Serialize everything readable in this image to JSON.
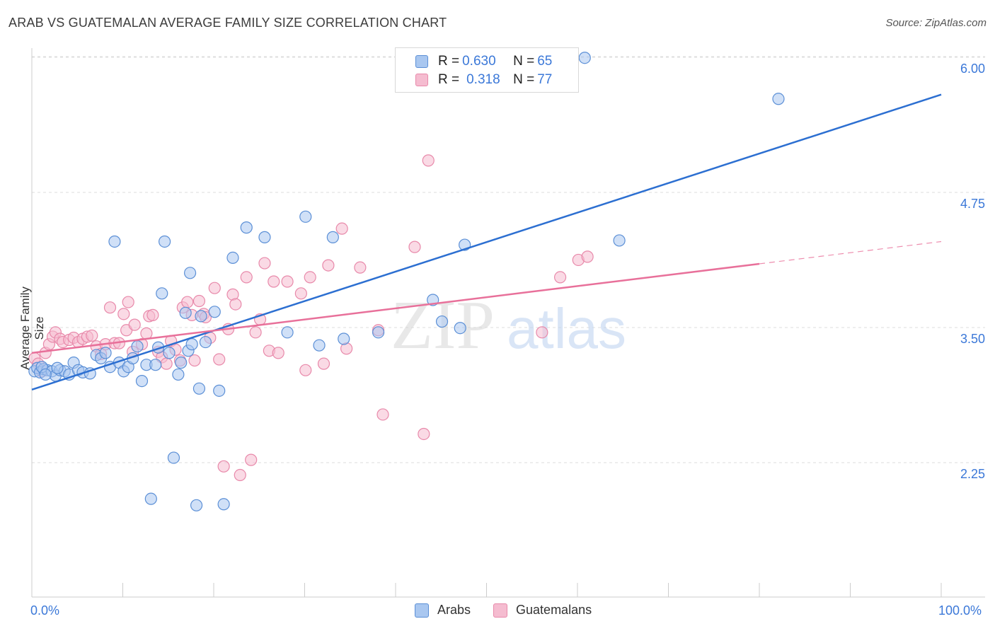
{
  "title": "ARAB VS GUATEMALAN AVERAGE FAMILY SIZE CORRELATION CHART",
  "source": "Source: ZipAtlas.com",
  "watermark": {
    "zip": "ZIP",
    "atlas": "atlas"
  },
  "legend_top": {
    "rows": [
      {
        "r_label": "R = ",
        "r_value": "0.630",
        "n_label": "N = ",
        "n_value": "65"
      },
      {
        "r_label": "R = ",
        "r_value": "0.318",
        "n_label": "N = ",
        "n_value": "77"
      }
    ]
  },
  "legend_bottom": {
    "arabs": "Arabs",
    "guatemalans": "Guatemalans"
  },
  "colors": {
    "arabs_fill": "#a9c7f0",
    "arabs_stroke": "#5b8fd6",
    "arabs_line": "#2c6fd1",
    "guat_fill": "#f5bcd0",
    "guat_stroke": "#e889aa",
    "guat_line": "#e8709a",
    "axis_label": "#3b78d8",
    "grid": "#dddddd"
  },
  "chart_data": {
    "type": "scatter",
    "title": "ARAB VS GUATEMALAN AVERAGE FAMILY SIZE CORRELATION CHART",
    "xlabel": "",
    "ylabel": "Average Family Size",
    "xlim": [
      0,
      100
    ],
    "ylim": [
      1.2,
      6.2
    ],
    "x_tick_labels": [
      "0.0%",
      "100.0%"
    ],
    "y_ticks": [
      2.25,
      3.5,
      4.75,
      6.0
    ],
    "y_tick_labels": [
      "2.25",
      "3.50",
      "4.75",
      "6.00"
    ],
    "grid": true,
    "series": [
      {
        "name": "Arabs",
        "r": 0.63,
        "n": 65,
        "trend": {
          "x": [
            0,
            100
          ],
          "y": [
            3.03,
            5.76
          ],
          "dashed_from": null
        },
        "points": [
          [
            0.3,
            3.2
          ],
          [
            0.6,
            3.23
          ],
          [
            0.9,
            3.19
          ],
          [
            1.3,
            3.22
          ],
          [
            1.7,
            3.21
          ],
          [
            2.2,
            3.2
          ],
          [
            2.6,
            3.16
          ],
          [
            3.1,
            3.21
          ],
          [
            3.6,
            3.2
          ],
          [
            4.1,
            3.17
          ],
          [
            4.6,
            3.28
          ],
          [
            5.1,
            3.21
          ],
          [
            5.6,
            3.19
          ],
          [
            6.4,
            3.18
          ],
          [
            7.1,
            3.35
          ],
          [
            7.6,
            3.32
          ],
          [
            8.1,
            3.37
          ],
          [
            8.6,
            3.24
          ],
          [
            9.1,
            4.4
          ],
          [
            9.6,
            3.28
          ],
          [
            10.1,
            3.2
          ],
          [
            10.6,
            3.24
          ],
          [
            11.1,
            3.32
          ],
          [
            11.6,
            3.43
          ],
          [
            12.1,
            3.11
          ],
          [
            12.6,
            3.26
          ],
          [
            13.1,
            2.02
          ],
          [
            13.6,
            3.26
          ],
          [
            13.9,
            3.42
          ],
          [
            14.3,
            3.92
          ],
          [
            14.6,
            4.4
          ],
          [
            15.1,
            3.37
          ],
          [
            15.6,
            2.4
          ],
          [
            16.1,
            3.17
          ],
          [
            16.4,
            3.28
          ],
          [
            16.9,
            3.74
          ],
          [
            17.2,
            3.39
          ],
          [
            17.4,
            4.11
          ],
          [
            17.6,
            3.45
          ],
          [
            18.1,
            1.96
          ],
          [
            18.6,
            3.71
          ],
          [
            19.1,
            3.47
          ],
          [
            18.4,
            3.04
          ],
          [
            20.1,
            3.75
          ],
          [
            20.6,
            3.02
          ],
          [
            21.1,
            1.97
          ],
          [
            22.1,
            4.25
          ],
          [
            23.6,
            4.53
          ],
          [
            25.6,
            4.44
          ],
          [
            28.1,
            3.56
          ],
          [
            30.1,
            4.63
          ],
          [
            31.6,
            3.44
          ],
          [
            33.1,
            4.44
          ],
          [
            34.3,
            3.5
          ],
          [
            38.1,
            3.56
          ],
          [
            44.1,
            3.86
          ],
          [
            45.1,
            3.66
          ],
          [
            47.1,
            3.6
          ],
          [
            47.6,
            4.37
          ],
          [
            60.8,
            6.1
          ],
          [
            64.6,
            4.41
          ],
          [
            82.1,
            5.72
          ],
          [
            1.1,
            3.24
          ],
          [
            1.5,
            3.17
          ],
          [
            2.8,
            3.23
          ]
        ]
      },
      {
        "name": "Guatemalans",
        "r": 0.318,
        "n": 77,
        "trend": {
          "x": [
            0,
            100
          ],
          "y": [
            3.37,
            4.4
          ],
          "dashed_from": 80
        },
        "points": [
          [
            0.3,
            3.32
          ],
          [
            0.7,
            3.27
          ],
          [
            1.1,
            3.2
          ],
          [
            1.5,
            3.37
          ],
          [
            1.9,
            3.45
          ],
          [
            2.3,
            3.52
          ],
          [
            2.6,
            3.56
          ],
          [
            3.1,
            3.5
          ],
          [
            3.4,
            3.47
          ],
          [
            4.1,
            3.49
          ],
          [
            4.6,
            3.51
          ],
          [
            5.1,
            3.47
          ],
          [
            5.6,
            3.5
          ],
          [
            6.1,
            3.52
          ],
          [
            6.6,
            3.53
          ],
          [
            7.1,
            3.43
          ],
          [
            7.6,
            3.36
          ],
          [
            8.1,
            3.45
          ],
          [
            8.6,
            3.79
          ],
          [
            9.1,
            3.46
          ],
          [
            9.6,
            3.46
          ],
          [
            10.1,
            3.73
          ],
          [
            10.4,
            3.58
          ],
          [
            10.6,
            3.84
          ],
          [
            11.1,
            3.38
          ],
          [
            11.3,
            3.63
          ],
          [
            12.1,
            3.45
          ],
          [
            12.6,
            3.55
          ],
          [
            12.9,
            3.71
          ],
          [
            13.3,
            3.72
          ],
          [
            13.9,
            3.38
          ],
          [
            14.3,
            3.33
          ],
          [
            14.8,
            3.27
          ],
          [
            15.3,
            3.48
          ],
          [
            15.8,
            3.4
          ],
          [
            16.3,
            3.3
          ],
          [
            16.6,
            3.79
          ],
          [
            17.1,
            3.84
          ],
          [
            17.6,
            3.72
          ],
          [
            17.9,
            3.3
          ],
          [
            18.4,
            3.85
          ],
          [
            18.9,
            3.73
          ],
          [
            19.1,
            3.7
          ],
          [
            19.6,
            3.51
          ],
          [
            20.1,
            3.97
          ],
          [
            20.6,
            3.31
          ],
          [
            21.1,
            2.32
          ],
          [
            21.6,
            3.59
          ],
          [
            22.1,
            3.91
          ],
          [
            22.4,
            3.82
          ],
          [
            22.9,
            2.24
          ],
          [
            23.6,
            4.07
          ],
          [
            24.1,
            2.38
          ],
          [
            24.6,
            3.56
          ],
          [
            25.1,
            3.68
          ],
          [
            25.6,
            4.2
          ],
          [
            26.1,
            3.39
          ],
          [
            26.6,
            4.03
          ],
          [
            27.1,
            3.37
          ],
          [
            28.1,
            4.03
          ],
          [
            29.6,
            3.92
          ],
          [
            30.1,
            3.21
          ],
          [
            30.6,
            4.07
          ],
          [
            32.1,
            3.27
          ],
          [
            32.6,
            4.18
          ],
          [
            34.1,
            4.52
          ],
          [
            34.6,
            3.41
          ],
          [
            36.1,
            4.16
          ],
          [
            38.1,
            3.58
          ],
          [
            38.6,
            2.8
          ],
          [
            42.1,
            4.35
          ],
          [
            43.1,
            2.62
          ],
          [
            43.6,
            5.15
          ],
          [
            56.1,
            3.56
          ],
          [
            58.1,
            4.07
          ],
          [
            60.1,
            4.23
          ],
          [
            61.1,
            4.26
          ]
        ]
      }
    ]
  }
}
